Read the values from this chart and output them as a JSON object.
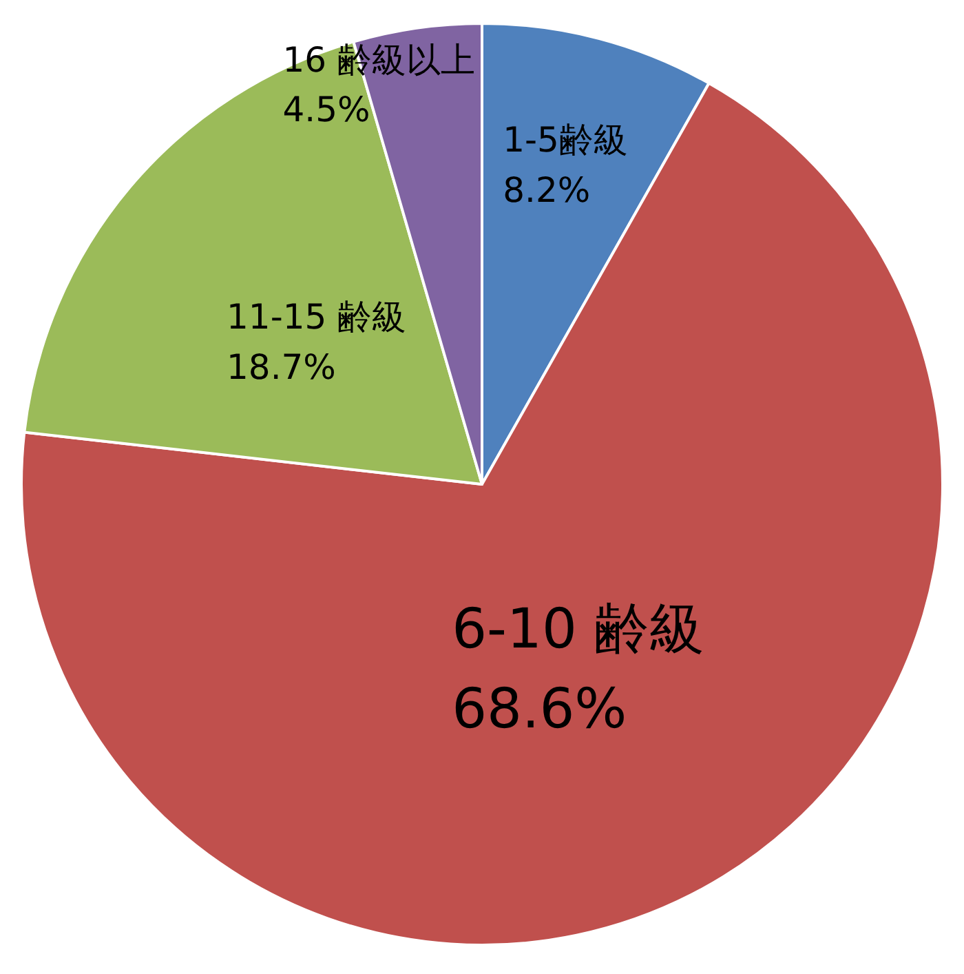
{
  "chart_data": {
    "type": "pie",
    "categories": [
      "1-5齢級",
      "6-10 齢級",
      "11-15 齢級",
      "16 齢級以上"
    ],
    "values": [
      8.2,
      68.6,
      18.7,
      4.5
    ],
    "colors": [
      "#4f81bd",
      "#c0504d",
      "#9bbb59",
      "#8064a2"
    ],
    "value_labels": [
      "8.2%",
      "68.6%",
      "18.7%",
      "4.5%"
    ]
  }
}
